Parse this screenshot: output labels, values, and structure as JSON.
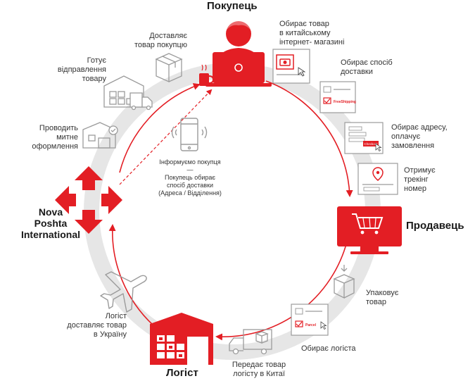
{
  "colors": {
    "accent": "#e31e24",
    "ring": "#e6e6e6",
    "icon_gray": "#9b9b9b",
    "text": "#333333"
  },
  "titles": {
    "buyer": "Покупець",
    "seller": "Продавець",
    "logist": "Логіст",
    "company": [
      "Nova",
      "Poshta",
      "International"
    ]
  },
  "steps": {
    "choose_product": [
      "Обирає товар",
      "в китайському",
      "інтернет- магазині"
    ],
    "choose_delivery": [
      "Обирає спосіб",
      "доставки"
    ],
    "choose_address": [
      "Обирає адресу,",
      "оплачує",
      "замовлення"
    ],
    "tracking": [
      "Отримує",
      "трекінг",
      "номер"
    ],
    "pack": [
      "Упаковує",
      "товар"
    ],
    "choose_logist": [
      "Обирає логіста"
    ],
    "hand_over": [
      "Передає товар",
      "логісту в Китаї"
    ],
    "deliver_ukraine": [
      "Логіст",
      "доставляє товар",
      "в Україну"
    ],
    "customs": [
      "Проводить",
      "митне",
      "оформлення"
    ],
    "prepare": [
      "Готує",
      "відправлення",
      "товару"
    ],
    "deliver_buyer": [
      "Доставляє",
      "товар покупцю"
    ]
  },
  "center": {
    "inform": "Інформуємо покупця",
    "dash": "—",
    "choose": [
      "Покупець обирає",
      "спосіб доставки",
      "(Адреса / Відділення)"
    ]
  },
  "mockups": {
    "freeshipping": "FreeShipping",
    "checkout": "Checkout",
    "parcel": "Parcel"
  },
  "icons": [
    "buyer-laptop-icon",
    "coffee-cup-icon",
    "seller-cart-monitor-icon",
    "warehouse-icon",
    "plane-icon",
    "truck-icon",
    "box-icon",
    "customs-building-icon",
    "phone-icon",
    "map-pin-icon",
    "nova-poshta-logo-icon"
  ]
}
